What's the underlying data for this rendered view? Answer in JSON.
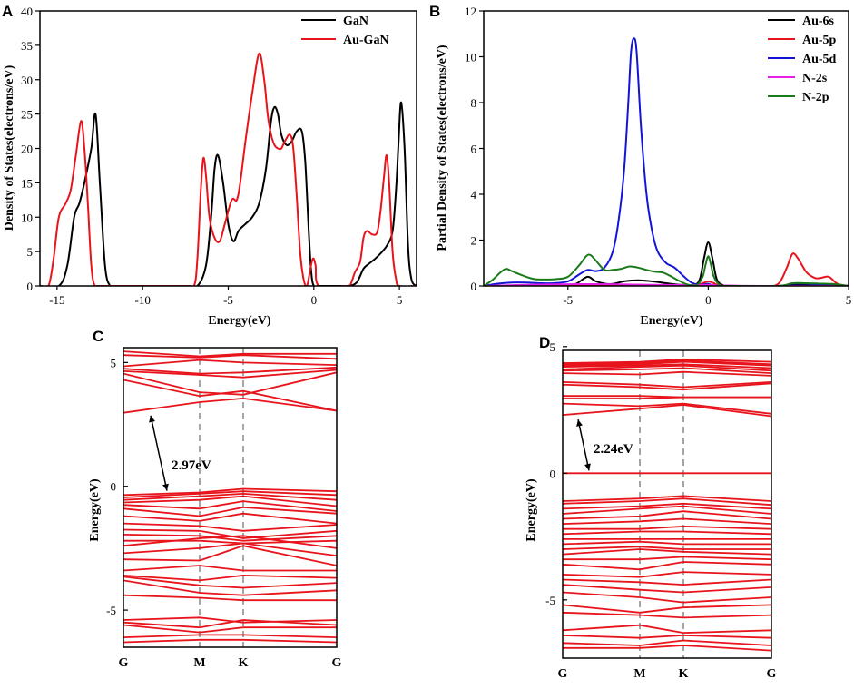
{
  "chart_data": [
    {
      "panel": "A",
      "type": "line",
      "xlabel": "Energy(eV)",
      "ylabel": "Density of States(electrons/eV)",
      "xlim": [
        -16,
        6
      ],
      "ylim": [
        0,
        40
      ],
      "xticks": [
        -15,
        -10,
        -5,
        0,
        5
      ],
      "yticks": [
        0,
        5,
        10,
        15,
        20,
        25,
        30,
        35,
        40
      ],
      "legend_position": "top-right",
      "series": [
        {
          "name": "GaN",
          "color": "#000000",
          "x": [
            -16,
            -14.9,
            -14.4,
            -14.0,
            -13.7,
            -13.4,
            -13.0,
            -12.75,
            -12.5,
            -12.2,
            -11.9,
            -11.5,
            -7.5,
            -6.8,
            -6.3,
            -6.0,
            -5.8,
            -5.6,
            -5.3,
            -5.0,
            -4.7,
            -4.4,
            -4.0,
            -3.6,
            -3.2,
            -2.8,
            -2.5,
            -2.3,
            -2.1,
            -1.9,
            -1.6,
            -1.3,
            -1.0,
            -0.7,
            -0.5,
            -0.3,
            -0.15,
            0,
            0.3,
            1.5,
            2.0,
            2.5,
            2.9,
            3.2,
            3.6,
            4.0,
            4.3,
            4.6,
            4.8,
            4.95,
            5.1,
            5.3,
            5.5,
            5.7,
            6
          ],
          "y": [
            0,
            0,
            3,
            10,
            12,
            15,
            20,
            25,
            15,
            3,
            0,
            0,
            0,
            0,
            3,
            10,
            17,
            19,
            15,
            9,
            6.5,
            8,
            9,
            10,
            12,
            17,
            24,
            26,
            25,
            22,
            20.5,
            21,
            22.5,
            22.5,
            18,
            8,
            2,
            0,
            0,
            0,
            0,
            0.5,
            2.5,
            3.2,
            4,
            5,
            6,
            8,
            14,
            21,
            26.7,
            20,
            6,
            1,
            0
          ]
        },
        {
          "name": "Au-GaN",
          "color": "#e8141c",
          "x": [
            -16,
            -15.5,
            -15.2,
            -14.9,
            -14.5,
            -14.2,
            -13.9,
            -13.6,
            -13.4,
            -13.2,
            -13.0,
            -12.8,
            -12.5,
            -7.5,
            -7.0,
            -6.8,
            -6.6,
            -6.45,
            -6.3,
            -6.1,
            -5.8,
            -5.5,
            -5.2,
            -4.8,
            -4.5,
            -4.3,
            -4.0,
            -3.6,
            -3.2,
            -2.9,
            -2.7,
            -2.5,
            -2.3,
            -2.1,
            -1.9,
            -1.7,
            -1.4,
            -1.2,
            -1.0,
            -0.8,
            -0.6,
            -0.4,
            -0.2,
            -0.05,
            0.1,
            0.3,
            1.8,
            2.1,
            2.4,
            2.7,
            2.9,
            3.1,
            3.4,
            3.7,
            3.9,
            4.1,
            4.25,
            4.4,
            4.6,
            4.8,
            5.0,
            6
          ],
          "y": [
            0,
            0,
            4,
            10,
            12,
            14,
            19,
            24,
            20,
            12,
            3,
            0,
            0,
            0,
            0,
            4,
            14,
            18.6,
            16,
            10,
            7,
            6.5,
            9,
            12.5,
            12.5,
            15,
            21,
            28,
            33.8,
            30,
            25,
            22,
            20.5,
            20,
            20,
            21,
            22,
            20,
            13,
            5,
            1,
            0,
            2.5,
            4,
            3,
            0,
            0,
            0,
            2,
            3.5,
            7,
            8,
            7.5,
            7.8,
            11,
            16,
            19,
            15,
            5,
            1,
            0,
            0
          ]
        }
      ]
    },
    {
      "panel": "B",
      "type": "line",
      "xlabel": "Energy(eV)",
      "ylabel": "Partial Density of States(electrons/eV)",
      "xlim": [
        -8,
        5
      ],
      "ylim": [
        0,
        12
      ],
      "xticks": [
        -5,
        0,
        5
      ],
      "yticks": [
        0,
        2,
        4,
        6,
        8,
        10,
        12
      ],
      "legend_position": "top-right",
      "series": [
        {
          "name": "Au-6s",
          "color": "#000000",
          "x": [
            -8,
            -6,
            -5,
            -4.7,
            -4.3,
            -4.0,
            -3.5,
            -3.0,
            -2.5,
            -2.0,
            -1.5,
            -1.0,
            -0.5,
            -0.3,
            -0.15,
            0,
            0.15,
            0.3,
            0.5,
            0.8,
            2.5,
            3.0,
            3.5,
            4.0,
            5
          ],
          "y": [
            0,
            0.02,
            0.05,
            0.1,
            0.4,
            0.2,
            0.08,
            0.2,
            0.25,
            0.2,
            0.12,
            0.05,
            0.05,
            0.3,
            1.2,
            1.9,
            1.2,
            0.3,
            0.05,
            0,
            0,
            0.05,
            0.05,
            0.03,
            0
          ]
        },
        {
          "name": "Au-5p",
          "color": "#e8141c",
          "x": [
            -8,
            -5,
            -4.3,
            -3.5,
            -2.5,
            -1.5,
            -0.5,
            -0.2,
            0,
            0.2,
            0.5,
            2.0,
            2.5,
            2.8,
            3.0,
            3.2,
            3.5,
            3.8,
            4.0,
            4.3,
            4.6,
            5
          ],
          "y": [
            0,
            0.02,
            0.05,
            0.05,
            0.05,
            0.03,
            0.03,
            0.12,
            0.2,
            0.12,
            0.02,
            0,
            0.1,
            0.8,
            1.4,
            1.2,
            0.6,
            0.35,
            0.35,
            0.4,
            0.1,
            0
          ]
        },
        {
          "name": "Au-5d",
          "color": "#1414d6",
          "x": [
            -8,
            -7.5,
            -7.0,
            -6.5,
            -6.0,
            -5.5,
            -5.0,
            -4.6,
            -4.3,
            -4.0,
            -3.7,
            -3.4,
            -3.2,
            -3.0,
            -2.85,
            -2.75,
            -2.65,
            -2.55,
            -2.4,
            -2.2,
            -2.0,
            -1.8,
            -1.5,
            -1.2,
            -0.9,
            -0.6,
            -0.3,
            -0.1,
            0,
            0.1,
            0.3,
            0.6,
            1.0,
            2.5,
            3.0,
            3.5,
            4.0,
            4.5,
            5
          ],
          "y": [
            0,
            0.1,
            0.15,
            0.15,
            0.12,
            0.12,
            0.2,
            0.5,
            0.7,
            0.65,
            0.8,
            1.5,
            2.8,
            5.0,
            8.0,
            10.2,
            10.8,
            10.2,
            7.0,
            4.0,
            2.4,
            1.5,
            1.0,
            0.8,
            0.45,
            0.15,
            0.05,
            0.08,
            0.1,
            0.05,
            0,
            0,
            0,
            0,
            0.1,
            0.1,
            0.05,
            0.05,
            0
          ]
        },
        {
          "name": "N-2s",
          "color": "#e61ee6",
          "x": [
            -8,
            -6,
            -4,
            -2,
            -0.5,
            0,
            0.5,
            2,
            5
          ],
          "y": [
            0,
            0.06,
            0.08,
            0.05,
            0.04,
            0.05,
            0.02,
            0,
            0
          ]
        },
        {
          "name": "N-2p",
          "color": "#1a7a1a",
          "x": [
            -8,
            -7.7,
            -7.4,
            -7.2,
            -7.0,
            -6.6,
            -6.2,
            -5.8,
            -5.4,
            -5.0,
            -4.6,
            -4.35,
            -4.2,
            -4.0,
            -3.7,
            -3.4,
            -3.1,
            -2.8,
            -2.5,
            -2.2,
            -1.9,
            -1.6,
            -1.3,
            -1.0,
            -0.7,
            -0.4,
            -0.2,
            -0.1,
            0,
            0.1,
            0.2,
            0.4,
            0.7,
            1.0,
            2.5,
            3.0,
            3.5,
            4.0,
            4.5,
            5
          ],
          "y": [
            0,
            0.25,
            0.6,
            0.75,
            0.65,
            0.45,
            0.3,
            0.28,
            0.3,
            0.4,
            0.9,
            1.3,
            1.35,
            1.1,
            0.7,
            0.7,
            0.75,
            0.85,
            0.8,
            0.7,
            0.62,
            0.58,
            0.4,
            0.2,
            0.05,
            0.05,
            0.4,
            0.9,
            1.3,
            0.9,
            0.4,
            0.05,
            0,
            0,
            0,
            0.12,
            0.12,
            0.1,
            0.08,
            0
          ]
        }
      ]
    },
    {
      "panel": "C",
      "type": "line",
      "ylabel": "Energy(eV)",
      "k_labels": [
        "G",
        "M",
        "K",
        "G"
      ],
      "ylim": [
        -6.5,
        5.6
      ],
      "yticks": [
        -5,
        0,
        5
      ],
      "gap_annotation": "2.97eV",
      "gap_eV": 2.97,
      "band_color": "#e8141c",
      "bands": [
        [
          5.45,
          5.25,
          5.35,
          5.35
        ],
        [
          5.3,
          5.2,
          5.3,
          5.15
        ],
        [
          4.85,
          5.1,
          5.0,
          4.9
        ],
        [
          4.75,
          4.55,
          4.6,
          4.8
        ],
        [
          4.65,
          4.5,
          4.4,
          4.7
        ],
        [
          4.55,
          3.8,
          3.7,
          4.6
        ],
        [
          4.3,
          3.65,
          3.85,
          3.05
        ],
        [
          2.97,
          3.4,
          3.55,
          3.05
        ],
        [
          -0.35,
          -0.25,
          -0.1,
          -0.2
        ],
        [
          -0.45,
          -0.3,
          -0.2,
          -0.35
        ],
        [
          -0.55,
          -0.4,
          -0.3,
          -0.55
        ],
        [
          -0.65,
          -0.55,
          -0.4,
          -0.8
        ],
        [
          -0.75,
          -0.9,
          -0.6,
          -1.0
        ],
        [
          -0.9,
          -1.2,
          -0.85,
          -1.1
        ],
        [
          -1.2,
          -1.4,
          -1.1,
          -1.5
        ],
        [
          -1.5,
          -1.6,
          -1.8,
          -1.55
        ],
        [
          -1.75,
          -1.8,
          -2.1,
          -1.8
        ],
        [
          -1.95,
          -2.0,
          -2.2,
          -2.0
        ],
        [
          -2.2,
          -2.2,
          -2.3,
          -2.2
        ],
        [
          -2.4,
          -2.1,
          -2.0,
          -2.5
        ],
        [
          -2.7,
          -2.5,
          -2.3,
          -2.8
        ],
        [
          -2.95,
          -3.0,
          -2.4,
          -3.2
        ],
        [
          -3.4,
          -3.2,
          -3.4,
          -3.4
        ],
        [
          -3.6,
          -3.8,
          -3.6,
          -3.7
        ],
        [
          -3.65,
          -4.0,
          -4.1,
          -3.9
        ],
        [
          -3.8,
          -4.3,
          -4.4,
          -4.2
        ],
        [
          -4.4,
          -4.5,
          -4.6,
          -4.6
        ],
        [
          -5.4,
          -5.3,
          -5.5,
          -5.4
        ],
        [
          -5.5,
          -5.7,
          -5.4,
          -5.6
        ],
        [
          -5.6,
          -5.9,
          -5.7,
          -5.7
        ],
        [
          -6.1,
          -6.0,
          -6.0,
          -6.1
        ],
        [
          -6.3,
          -6.2,
          -6.2,
          -6.3
        ]
      ]
    },
    {
      "panel": "D",
      "type": "line",
      "ylabel": "Energy(eV)",
      "k_labels": [
        "G",
        "M",
        "K",
        "G"
      ],
      "ylim": [
        -7.3,
        4.85
      ],
      "yticks": [
        -5,
        0,
        5
      ],
      "gap_annotation": "2.24eV",
      "gap_eV": 2.24,
      "band_color": "#e8141c",
      "bands": [
        [
          4.35,
          4.4,
          4.5,
          4.4
        ],
        [
          4.3,
          4.35,
          4.45,
          4.3
        ],
        [
          4.25,
          4.3,
          4.4,
          4.25
        ],
        [
          4.2,
          4.25,
          4.3,
          4.15
        ],
        [
          4.1,
          4.2,
          4.25,
          4.05
        ],
        [
          4.05,
          4.1,
          4.15,
          3.95
        ],
        [
          3.95,
          3.9,
          4.0,
          3.85
        ],
        [
          3.6,
          3.5,
          3.4,
          3.6
        ],
        [
          3.5,
          3.4,
          3.3,
          3.55
        ],
        [
          3.05,
          3.05,
          3.0,
          3.0
        ],
        [
          2.95,
          2.95,
          3.0,
          3.0
        ],
        [
          2.75,
          2.65,
          2.75,
          2.35
        ],
        [
          2.3,
          2.55,
          2.7,
          2.25
        ],
        [
          0.0,
          0.0,
          0.0,
          0.0
        ],
        [
          -1.1,
          -1.0,
          -0.9,
          -1.1
        ],
        [
          -1.2,
          -1.1,
          -1.0,
          -1.25
        ],
        [
          -1.4,
          -1.3,
          -1.2,
          -1.4
        ],
        [
          -1.6,
          -1.4,
          -1.3,
          -1.6
        ],
        [
          -1.8,
          -1.7,
          -1.5,
          -1.8
        ],
        [
          -2.0,
          -1.9,
          -1.8,
          -2.0
        ],
        [
          -2.2,
          -2.2,
          -2.1,
          -2.2
        ],
        [
          -2.4,
          -2.3,
          -2.3,
          -2.4
        ],
        [
          -2.6,
          -2.6,
          -2.6,
          -2.6
        ],
        [
          -2.8,
          -2.7,
          -2.8,
          -2.8
        ],
        [
          -3.0,
          -2.9,
          -3.0,
          -3.0
        ],
        [
          -3.2,
          -3.0,
          -3.1,
          -3.2
        ],
        [
          -3.4,
          -3.4,
          -3.3,
          -3.4
        ],
        [
          -3.6,
          -3.8,
          -3.5,
          -3.6
        ],
        [
          -4.0,
          -4.1,
          -3.9,
          -4.0
        ],
        [
          -4.2,
          -4.3,
          -4.4,
          -4.2
        ],
        [
          -4.4,
          -4.6,
          -4.7,
          -4.5
        ],
        [
          -4.7,
          -4.9,
          -5.1,
          -4.9
        ],
        [
          -5.2,
          -5.5,
          -5.3,
          -5.2
        ],
        [
          -5.5,
          -5.6,
          -5.7,
          -5.6
        ],
        [
          -6.2,
          -6.0,
          -6.3,
          -6.2
        ],
        [
          -6.4,
          -6.5,
          -6.4,
          -6.5
        ],
        [
          -6.7,
          -6.8,
          -6.6,
          -6.8
        ],
        [
          -6.9,
          -6.9,
          -6.8,
          -7.0
        ]
      ]
    }
  ]
}
